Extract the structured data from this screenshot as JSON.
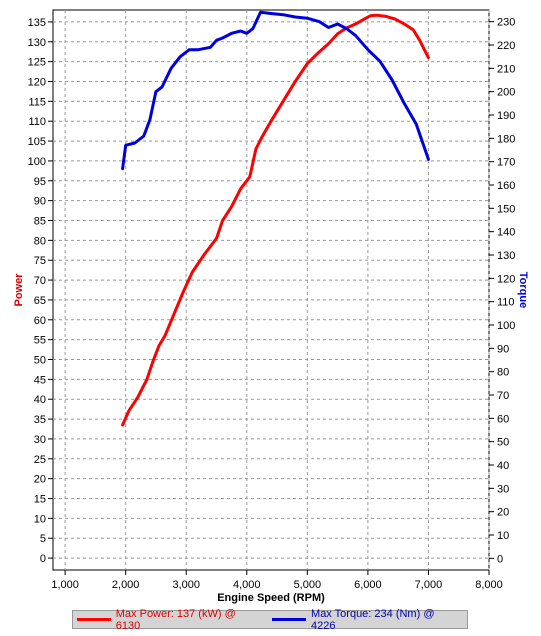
{
  "chart_data": {
    "type": "line",
    "xlabel": "Engine Speed (RPM)",
    "ylabel_left": "Power",
    "ylabel_right": "Torque",
    "xlim": [
      800,
      8000
    ],
    "ylim_left": [
      -3,
      138
    ],
    "ylim_right": [
      -5,
      235
    ],
    "x_ticks": [
      "1,000",
      "2,000",
      "3,000",
      "4,000",
      "5,000",
      "6,000",
      "7,000",
      "8,000"
    ],
    "y_left_ticks": [
      "0",
      "5",
      "10",
      "15",
      "20",
      "25",
      "30",
      "35",
      "40",
      "45",
      "50",
      "55",
      "60",
      "65",
      "70",
      "75",
      "80",
      "85",
      "90",
      "95",
      "100",
      "105",
      "110",
      "115",
      "120",
      "125",
      "130",
      "135"
    ],
    "y_right_ticks": [
      "0",
      "10",
      "20",
      "30",
      "40",
      "50",
      "60",
      "70",
      "80",
      "90",
      "100",
      "110",
      "120",
      "130",
      "140",
      "150",
      "160",
      "170",
      "180",
      "190",
      "200",
      "210",
      "220",
      "230"
    ],
    "grid": true,
    "legend_position": "bottom",
    "series": [
      {
        "name": "Max Power: 137 (kW) @ 6130",
        "axis": "left",
        "color": "#ff0000",
        "x": [
          1950,
          2050,
          2200,
          2350,
          2450,
          2550,
          2650,
          2800,
          2950,
          3100,
          3300,
          3500,
          3600,
          3750,
          3900,
          4050,
          4150,
          4250,
          4400,
          4600,
          4800,
          5000,
          5200,
          5350,
          5500,
          5650,
          5800,
          5950,
          6050,
          6150,
          6300,
          6450,
          6600,
          6750,
          6850,
          7000
        ],
        "values": [
          33.5,
          37,
          40.5,
          45,
          49.5,
          53.5,
          56,
          61.5,
          67,
          72,
          76.5,
          80.5,
          85,
          88.5,
          93,
          96,
          103,
          106,
          110,
          115,
          120,
          124.5,
          127.5,
          129.5,
          132,
          133.5,
          134.5,
          135.8,
          136.6,
          136.7,
          136.4,
          135.7,
          134.5,
          133,
          130.5,
          126
        ]
      },
      {
        "name": "Max Torque: 234 (Nm) @ 4226",
        "axis": "right",
        "color": "#0000dd",
        "x": [
          1950,
          2000,
          2150,
          2300,
          2400,
          2500,
          2600,
          2750,
          2900,
          3050,
          3200,
          3400,
          3500,
          3600,
          3750,
          3900,
          4000,
          4100,
          4226,
          4400,
          4600,
          4800,
          5000,
          5200,
          5350,
          5500,
          5650,
          5800,
          6000,
          6200,
          6400,
          6600,
          6800,
          7000
        ],
        "values": [
          167,
          177,
          178,
          181,
          188,
          200,
          202,
          210,
          215,
          218,
          218,
          219,
          222,
          223,
          225,
          226,
          225,
          227,
          234,
          233.5,
          233,
          232,
          231.5,
          230,
          227.5,
          229,
          227,
          224,
          218,
          213,
          205,
          195,
          186,
          171
        ]
      }
    ]
  },
  "legend": {
    "power_label": "Max Power: 137 (kW) @ 6130",
    "torque_label": "Max Torque: 234 (Nm) @ 4226",
    "power_color": "#ff0000",
    "torque_color": "#0000dd"
  }
}
